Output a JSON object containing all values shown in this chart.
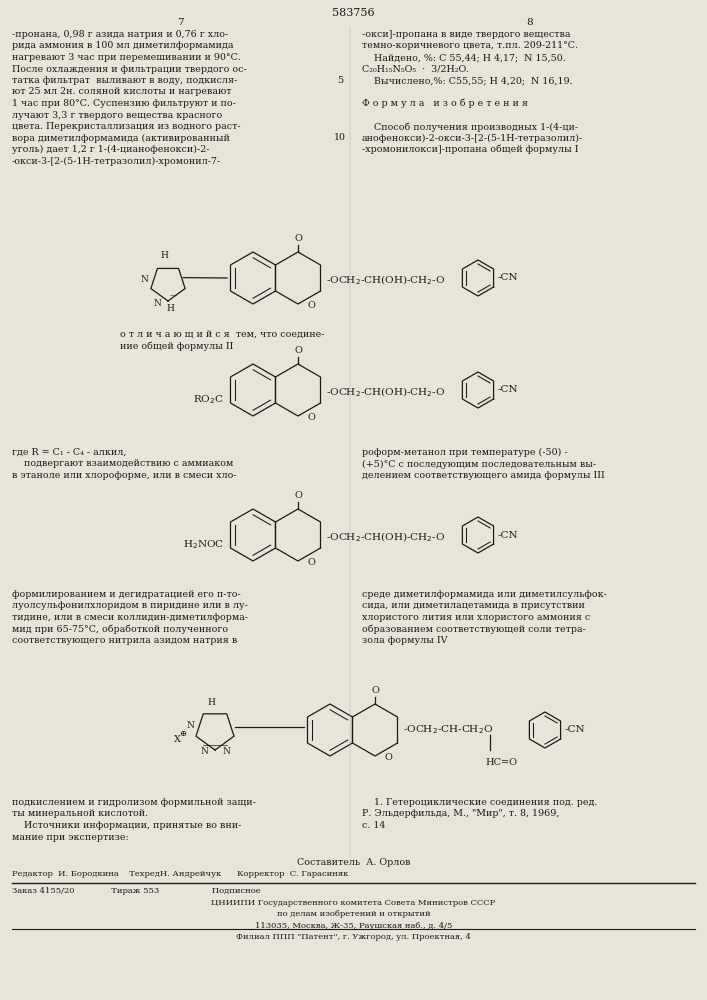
{
  "page_number_center": "583756",
  "page_left": "7",
  "page_right": "8",
  "background_color": "#e8e4d8",
  "text_color": "#1a1a1a",
  "left_col_lines": [
    "-пронана, 0,98 г азида натрия и 0,76 г хло-",
    "рида аммония в 100 мл диметилформамида",
    "нагревают 3 час при перемешивании и 90°С.",
    "После охлаждения и фильтрации твердого ос-",
    "татка фильтрат  выливают в воду, подкисля-",
    "ют 25 мл 2н. соляной кислоты и нагревают",
    "1 час при 80°С. Суспензию фильтруют и по-",
    "лучают 3,3 г твердого вещества красного",
    "цвета. Перекристаллизация из водного раст-",
    "вора диметилформамида (активированный",
    "уголь) дает 1,2 г 1-(4-цианофенокси)-2-",
    "-окси-3-[2-(5-1Н-тетразолил)-хромонил-7-"
  ],
  "right_col_lines": [
    "-окси]-пропана в виде твердого вещества",
    "темно-коричневого цвета, т.пл. 209-211°С.",
    "    Найдено, %: С 55,44; Н 4,17;  N 15,50.",
    "C₂₀H₁₅N₅O₅  ·  3/2H₂O.",
    "    Вычислено,%: С55,55; Н 4,20;  N 16,19.",
    "",
    "Ф о р м у л а   и з о б р е т е н и я",
    "",
    "    Способ получения производных 1-(4-ци-",
    "анофенокси)-2-окси-3-[2-(5-1Н-тетразолил)-",
    "-хромонилокси]-пропана общей формулы I"
  ],
  "middle_text_lines": [
    "о т л и ч а ю щ и й с я  тем, что соедине-",
    "ние общей формулы II"
  ],
  "left_col2_lines": [
    "где R = C₁ - C₄ - алкил,",
    "    подвергают взаимодействию с аммиаком",
    "в этаноле или хлороформе, или в смеси хло-"
  ],
  "right_col2_lines": [
    "роформ-метанол при температуре (-50) -",
    "(+5)°С с последующим последовательным вы-",
    "делением соответствующего амида формулы III"
  ],
  "left_col3_lines": [
    "формилированием и дегидратацией его п-то-",
    "луолсульфонилхлоридом в пиридине или в лу-",
    "тидине, или в смеси коллидин-диметилформа-",
    "мид при 65-75°С, обработкой полученного",
    "соответствующего нитрила азидом натрия в"
  ],
  "right_col3_lines": [
    "среде диметилформамида или диметилсульфок-",
    "сида, или диметилацетамида в присутствии",
    "хлористого лития или хлористого аммония с",
    "образованием соответствующей соли тетра-",
    "зола формулы IV"
  ],
  "left_col4_lines": [
    "подкислением и гидролизом формильной защи-",
    "ты минеральной кислотой.",
    "    Источники информации, принятые во вни-",
    "мание при экспертизе:"
  ],
  "right_col4_lines": [
    "    1. Гетероциклические соединения под. ред.",
    "Р. Эльдерфильда, М., \"Мир\", т. 8, 1969,",
    "с. 14"
  ],
  "footer_lines": [
    "Составитель  А. Орлов",
    "Редактор  И. Бородкина    ТехредН. Андрейчук      Корректор  С. Гарасиняк",
    "Заказ 4155/20              Тираж 553                    Подписное",
    "ЦНИИПИ Государственного комитета Совета Министров СССР",
    "по делам изобретений и открытий",
    "113035, Москва, Ж-35, Раушская наб., д. 4/5",
    "Филиал ППП \"Патент\", г. Ужгород, ул. Проектная, 4"
  ]
}
